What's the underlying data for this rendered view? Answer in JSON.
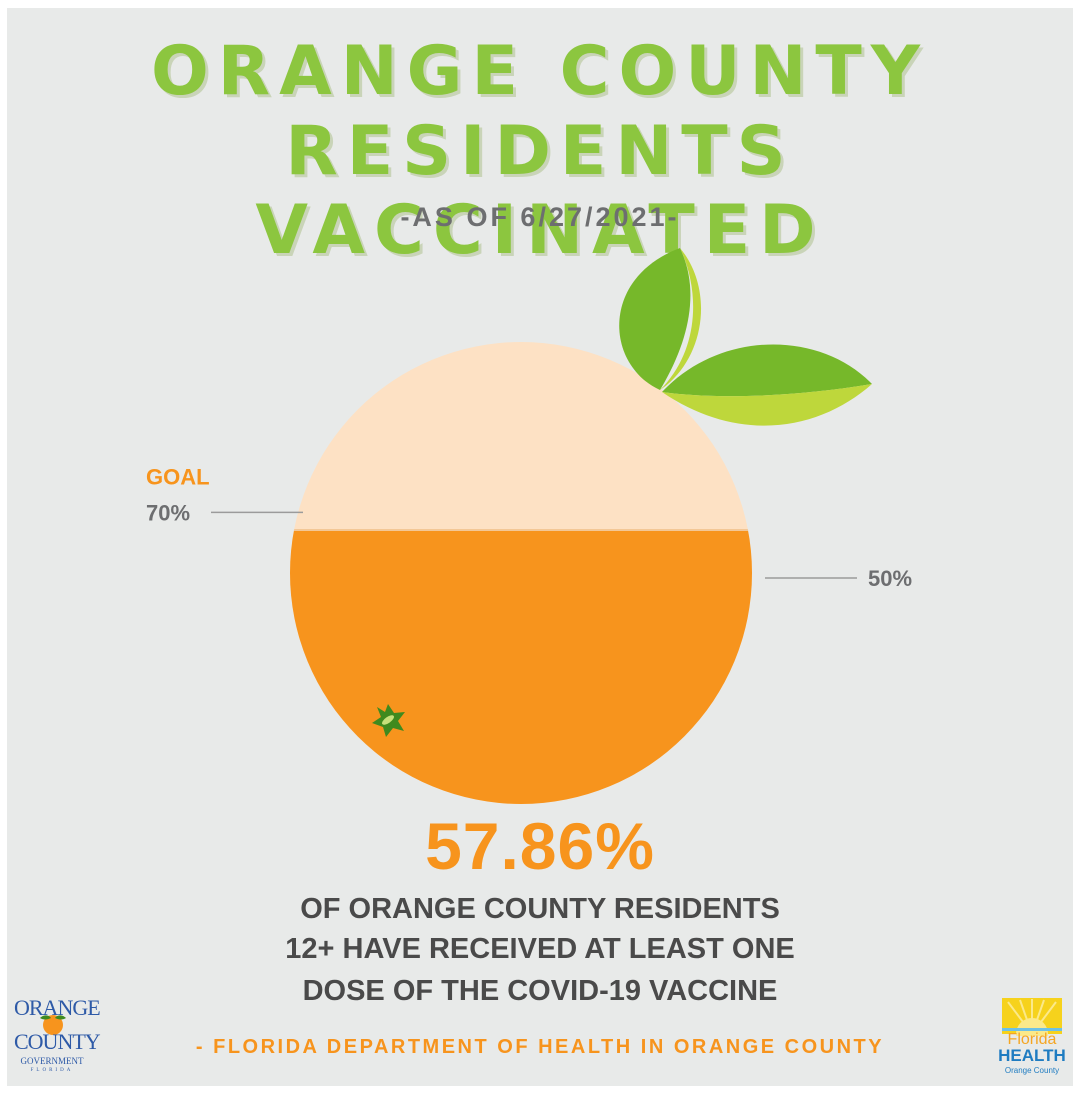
{
  "header": {
    "title_line1": "ORANGE COUNTY",
    "title_line2": "RESIDENTS VACCINATED",
    "as_of": "-AS OF 6/27/2021-"
  },
  "chart_data": {
    "type": "pie",
    "title": "ORANGE COUNTY RESIDENTS VACCINATED",
    "subtitle": "-AS OF 6/27/2021-",
    "unit": "%",
    "value": 57.86,
    "value_label": "57.86%",
    "goal": 70,
    "goal_label": "GOAL",
    "goal_value_label": "70%",
    "markers": [
      {
        "value": 50,
        "label": "50%"
      }
    ],
    "range": [
      0,
      100
    ],
    "colors": {
      "filled": "#f7941d",
      "empty": "#fde1c4",
      "leaf_dark": "#76b82a",
      "leaf_light": "#bed73b"
    }
  },
  "stat": {
    "value": "57.86%",
    "line1": "OF ORANGE COUNTY RESIDENTS",
    "line2": "12+ HAVE RECEIVED AT LEAST ONE",
    "line3": "DOSE OF THE COVID-19 VACCINE"
  },
  "source": "- FLORIDA DEPARTMENT OF HEALTH IN ORANGE COUNTY",
  "logos": {
    "orange_county": {
      "line1": "ORANGE",
      "line2": "COUNTY",
      "line3": "GOVERNMENT",
      "line4": "FLORIDA"
    },
    "florida_health": {
      "line1": "Florida",
      "line2": "HEALTH",
      "line3": "Orange County"
    }
  }
}
